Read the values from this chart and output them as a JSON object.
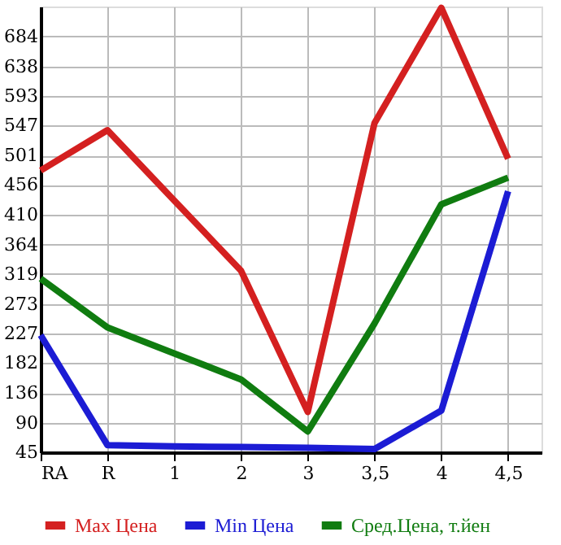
{
  "chart_data": {
    "type": "line",
    "categories": [
      "RA",
      "R",
      "1",
      "2",
      "3",
      "3,5",
      "4",
      "4,5"
    ],
    "series": [
      {
        "name": "Max Цена",
        "color": "#d42020",
        "values": [
          478,
          540,
          432,
          324,
          107,
          551,
          728,
          496
        ]
      },
      {
        "name": "Min Цена",
        "color": "#1c1cd4",
        "values": [
          225,
          56,
          54,
          53,
          52,
          50,
          109,
          446
        ]
      },
      {
        "name": "Сред.Цена, т.йен",
        "color": "#107c10",
        "values": [
          312,
          237,
          197,
          157,
          77,
          243,
          426,
          467
        ]
      }
    ],
    "ylim": [
      45,
      730
    ],
    "yticks": [
      45,
      90,
      136,
      182,
      227,
      273,
      319,
      364,
      410,
      456,
      501,
      547,
      593,
      638,
      684
    ],
    "grid": true,
    "legend": "bottom",
    "marker": "none",
    "line_style": "solid"
  }
}
